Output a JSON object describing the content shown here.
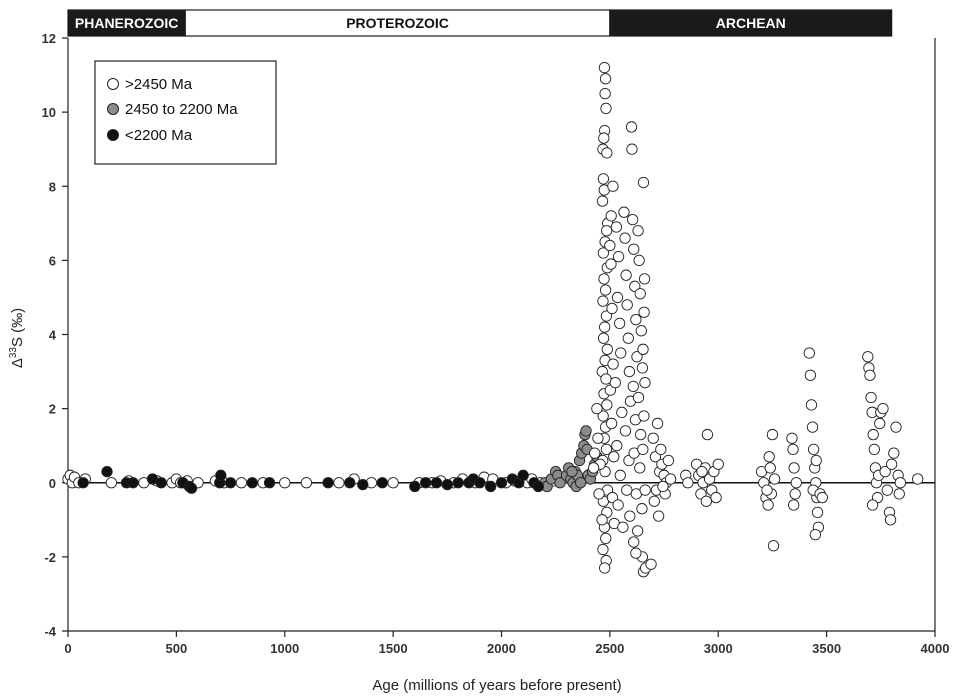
{
  "chart_data": {
    "type": "scatter",
    "xlabel": "Age (millions of years before present)",
    "ylabel_prefix": "Δ",
    "ylabel_sup": "33",
    "ylabel_suffix": "S (‰)",
    "xlim": [
      0,
      4000
    ],
    "ylim": [
      -4,
      12
    ],
    "x_ticks": [
      0,
      500,
      1000,
      1500,
      2000,
      2500,
      3000,
      3500,
      4000
    ],
    "y_ticks": [
      -4,
      -2,
      0,
      2,
      4,
      6,
      8,
      10,
      12
    ],
    "grid": false,
    "legend_position": "top-left",
    "eons": [
      {
        "name": "PHANEROZOIC",
        "from": 0,
        "to": 541,
        "fill": "#1a1a1a",
        "text": "#ffffff"
      },
      {
        "name": "PROTEROZOIC",
        "from": 541,
        "to": 2500,
        "fill": "#ffffff",
        "text": "#111111"
      },
      {
        "name": "ARCHEAN",
        "from": 2500,
        "to": 3800,
        "fill": "#1a1a1a",
        "text": "#ffffff"
      }
    ],
    "series": [
      {
        "name": ">2450 Ma",
        "fill": "#ffffff",
        "points": [
          [
            2475,
            11.2
          ],
          [
            2480,
            10.9
          ],
          [
            2478,
            10.5
          ],
          [
            2482,
            10.1
          ],
          [
            2476,
            9.5
          ],
          [
            2472,
            9.3
          ],
          [
            2468,
            9.0
          ],
          [
            2486,
            8.9
          ],
          [
            2470,
            8.2
          ],
          [
            2474,
            7.9
          ],
          [
            2466,
            7.6
          ],
          [
            2490,
            7.0
          ],
          [
            2485,
            6.8
          ],
          [
            2478,
            6.5
          ],
          [
            2470,
            6.2
          ],
          [
            2488,
            5.8
          ],
          [
            2473,
            5.5
          ],
          [
            2480,
            5.2
          ],
          [
            2468,
            4.9
          ],
          [
            2484,
            4.5
          ],
          [
            2476,
            4.2
          ],
          [
            2471,
            3.9
          ],
          [
            2488,
            3.6
          ],
          [
            2478,
            3.3
          ],
          [
            2465,
            3.0
          ],
          [
            2482,
            2.8
          ],
          [
            2473,
            2.4
          ],
          [
            2486,
            2.1
          ],
          [
            2469,
            1.8
          ],
          [
            2480,
            1.5
          ],
          [
            2474,
            1.2
          ],
          [
            2484,
            0.9
          ],
          [
            2467,
            0.6
          ],
          [
            2478,
            0.3
          ],
          [
            2470,
            -0.5
          ],
          [
            2486,
            -0.8
          ],
          [
            2475,
            -1.2
          ],
          [
            2481,
            -1.5
          ],
          [
            2468,
            -1.8
          ],
          [
            2483,
            -2.1
          ],
          [
            2476,
            -2.3
          ],
          [
            2464,
            -1.0
          ],
          [
            2489,
            -0.2
          ],
          [
            2440,
            2.0
          ],
          [
            2445,
            1.2
          ],
          [
            2430,
            0.8
          ],
          [
            2450,
            -0.3
          ],
          [
            2455,
            0.5
          ],
          [
            2425,
            0.4
          ],
          [
            2500,
            6.4
          ],
          [
            2505,
            5.9
          ],
          [
            2510,
            4.7
          ],
          [
            2515,
            3.2
          ],
          [
            2502,
            2.5
          ],
          [
            2508,
            1.6
          ],
          [
            2518,
            0.7
          ],
          [
            2512,
            -0.4
          ],
          [
            2520,
            -1.1
          ],
          [
            2506,
            7.2
          ],
          [
            2514,
            8.0
          ],
          [
            2530,
            6.9
          ],
          [
            2540,
            6.1
          ],
          [
            2535,
            5.0
          ],
          [
            2545,
            4.3
          ],
          [
            2550,
            3.5
          ],
          [
            2525,
            2.7
          ],
          [
            2555,
            1.9
          ],
          [
            2532,
            1.0
          ],
          [
            2548,
            0.2
          ],
          [
            2538,
            -0.6
          ],
          [
            2560,
            -1.2
          ],
          [
            2565,
            7.3
          ],
          [
            2570,
            6.6
          ],
          [
            2575,
            5.6
          ],
          [
            2580,
            4.8
          ],
          [
            2585,
            3.9
          ],
          [
            2590,
            3.0
          ],
          [
            2595,
            2.2
          ],
          [
            2572,
            1.4
          ],
          [
            2588,
            0.6
          ],
          [
            2578,
            -0.2
          ],
          [
            2592,
            -0.9
          ],
          [
            2600,
            9.6
          ],
          [
            2602,
            9.0
          ],
          [
            2605,
            7.1
          ],
          [
            2610,
            6.3
          ],
          [
            2615,
            5.3
          ],
          [
            2620,
            4.4
          ],
          [
            2625,
            3.4
          ],
          [
            2608,
            2.6
          ],
          [
            2618,
            1.7
          ],
          [
            2612,
            0.8
          ],
          [
            2622,
            -0.3
          ],
          [
            2630,
            6.8
          ],
          [
            2635,
            6.0
          ],
          [
            2640,
            5.1
          ],
          [
            2645,
            4.1
          ],
          [
            2650,
            3.1
          ],
          [
            2632,
            2.3
          ],
          [
            2642,
            1.3
          ],
          [
            2638,
            0.4
          ],
          [
            2648,
            -0.7
          ],
          [
            2628,
            -1.3
          ],
          [
            2655,
            8.1
          ],
          [
            2660,
            5.5
          ],
          [
            2658,
            4.6
          ],
          [
            2653,
            3.6
          ],
          [
            2662,
            2.7
          ],
          [
            2657,
            1.8
          ],
          [
            2652,
            0.9
          ],
          [
            2663,
            -0.2
          ],
          [
            2650,
            -2.0
          ],
          [
            2655,
            -2.4
          ],
          [
            2620,
            -1.9
          ],
          [
            2610,
            -1.6
          ],
          [
            2665,
            -2.3
          ],
          [
            2690,
            -2.2
          ],
          [
            2700,
            1.2
          ],
          [
            2710,
            0.7
          ],
          [
            2720,
            1.6
          ],
          [
            2730,
            0.3
          ],
          [
            2715,
            -0.2
          ],
          [
            2740,
            0.5
          ],
          [
            2705,
            -0.5
          ],
          [
            2725,
            -0.9
          ],
          [
            2750,
            0.2
          ],
          [
            2760,
            0.0
          ],
          [
            2770,
            0.6
          ],
          [
            2780,
            0.1
          ],
          [
            2755,
            -0.3
          ],
          [
            2735,
            0.9
          ],
          [
            2745,
            -0.1
          ],
          [
            2850,
            0.2
          ],
          [
            2860,
            0.0
          ],
          [
            2900,
            0.5
          ],
          [
            2910,
            0.2
          ],
          [
            2920,
            -0.3
          ],
          [
            2930,
            0.0
          ],
          [
            2940,
            0.4
          ],
          [
            2950,
            1.3
          ],
          [
            2960,
            0.1
          ],
          [
            2970,
            -0.2
          ],
          [
            2980,
            0.3
          ],
          [
            2990,
            -0.4
          ],
          [
            3000,
            0.5
          ],
          [
            2945,
            -0.5
          ],
          [
            2925,
            0.3
          ],
          [
            3200,
            0.3
          ],
          [
            3210,
            0.0
          ],
          [
            3220,
            -0.4
          ],
          [
            3230,
            -0.6
          ],
          [
            3240,
            0.4
          ],
          [
            3250,
            1.3
          ],
          [
            3255,
            -1.7
          ],
          [
            3260,
            0.1
          ],
          [
            3245,
            -0.3
          ],
          [
            3235,
            0.7
          ],
          [
            3225,
            -0.2
          ],
          [
            3340,
            1.2
          ],
          [
            3345,
            0.9
          ],
          [
            3350,
            0.4
          ],
          [
            3355,
            -0.3
          ],
          [
            3348,
            -0.6
          ],
          [
            3360,
            0.0
          ],
          [
            3420,
            3.5
          ],
          [
            3425,
            2.9
          ],
          [
            3430,
            2.1
          ],
          [
            3435,
            1.5
          ],
          [
            3440,
            0.9
          ],
          [
            3445,
            0.4
          ],
          [
            3450,
            0.0
          ],
          [
            3455,
            -0.4
          ],
          [
            3458,
            -0.8
          ],
          [
            3462,
            -1.2
          ],
          [
            3448,
            -1.4
          ],
          [
            3438,
            -0.2
          ],
          [
            3452,
            0.6
          ],
          [
            3470,
            -0.3
          ],
          [
            3480,
            -0.4
          ],
          [
            3690,
            3.4
          ],
          [
            3695,
            3.1
          ],
          [
            3700,
            2.9
          ],
          [
            3705,
            2.3
          ],
          [
            3710,
            1.9
          ],
          [
            3715,
            1.3
          ],
          [
            3720,
            0.9
          ],
          [
            3725,
            0.4
          ],
          [
            3730,
            0.0
          ],
          [
            3735,
            -0.4
          ],
          [
            3712,
            -0.6
          ],
          [
            3740,
            0.2
          ],
          [
            3745,
            1.6
          ],
          [
            3750,
            1.9
          ],
          [
            3760,
            2.0
          ],
          [
            3770,
            0.3
          ],
          [
            3780,
            -0.2
          ],
          [
            3790,
            -0.8
          ],
          [
            3795,
            -1.0
          ],
          [
            3800,
            0.5
          ],
          [
            3810,
            0.8
          ],
          [
            3820,
            1.5
          ],
          [
            3830,
            0.2
          ],
          [
            3840,
            0.0
          ],
          [
            3835,
            -0.3
          ],
          [
            3920,
            0.1
          ]
        ]
      },
      {
        "name": "2450 to 2200 Ma",
        "fill": "#8c8c8c",
        "points": [
          [
            2200,
            0.0
          ],
          [
            2210,
            -0.1
          ],
          [
            2230,
            0.1
          ],
          [
            2250,
            0.3
          ],
          [
            2260,
            0.2
          ],
          [
            2270,
            0.0
          ],
          [
            2300,
            0.2
          ],
          [
            2310,
            0.4
          ],
          [
            2320,
            0.1
          ],
          [
            2330,
            0.0
          ],
          [
            2340,
            0.3
          ],
          [
            2350,
            0.2
          ],
          [
            2360,
            0.6
          ],
          [
            2370,
            0.8
          ],
          [
            2380,
            1.0
          ],
          [
            2385,
            1.3
          ],
          [
            2390,
            1.4
          ],
          [
            2395,
            0.9
          ],
          [
            2400,
            0.2
          ],
          [
            2410,
            0.1
          ],
          [
            2420,
            0.3
          ],
          [
            2430,
            0.5
          ],
          [
            2440,
            0.7
          ],
          [
            2345,
            -0.1
          ],
          [
            2365,
            0.0
          ],
          [
            2325,
            0.3
          ]
        ]
      },
      {
        "name": "<2200 Ma",
        "fill": "#111111",
        "points": [
          [
            70,
            0.0
          ],
          [
            180,
            0.3
          ],
          [
            270,
            0.0
          ],
          [
            300,
            0.0
          ],
          [
            390,
            0.1
          ],
          [
            430,
            0.0
          ],
          [
            530,
            0.0
          ],
          [
            560,
            -0.1
          ],
          [
            570,
            -0.15
          ],
          [
            700,
            0.0
          ],
          [
            705,
            0.2
          ],
          [
            750,
            0.0
          ],
          [
            850,
            0.0
          ],
          [
            930,
            0.0
          ],
          [
            1200,
            0.0
          ],
          [
            1300,
            0.0
          ],
          [
            1360,
            -0.05
          ],
          [
            1450,
            0.0
          ],
          [
            1600,
            -0.1
          ],
          [
            1650,
            0.0
          ],
          [
            1700,
            0.0
          ],
          [
            1750,
            -0.05
          ],
          [
            1800,
            0.0
          ],
          [
            1850,
            0.0
          ],
          [
            1870,
            0.1
          ],
          [
            1900,
            0.0
          ],
          [
            1950,
            -0.1
          ],
          [
            2000,
            0.0
          ],
          [
            2050,
            0.1
          ],
          [
            2080,
            0.0
          ],
          [
            2100,
            0.2
          ],
          [
            2150,
            0.0
          ],
          [
            2170,
            -0.1
          ]
        ]
      }
    ],
    "background_open_points": [
      [
        0,
        0.1
      ],
      [
        10,
        0.2
      ],
      [
        20,
        0.0
      ],
      [
        30,
        0.15
      ],
      [
        50,
        0.0
      ],
      [
        80,
        0.1
      ],
      [
        200,
        0.0
      ],
      [
        280,
        0.05
      ],
      [
        350,
        0.0
      ],
      [
        410,
        0.05
      ],
      [
        480,
        0.0
      ],
      [
        500,
        0.1
      ],
      [
        520,
        0.0
      ],
      [
        550,
        0.05
      ],
      [
        600,
        0.0
      ],
      [
        680,
        0.05
      ],
      [
        720,
        0.0
      ],
      [
        800,
        0.0
      ],
      [
        900,
        0.0
      ],
      [
        1000,
        0.0
      ],
      [
        1100,
        0.0
      ],
      [
        1250,
        0.0
      ],
      [
        1320,
        0.1
      ],
      [
        1400,
        0.0
      ],
      [
        1500,
        0.0
      ],
      [
        1620,
        0.0
      ],
      [
        1680,
        0.0
      ],
      [
        1720,
        0.05
      ],
      [
        1780,
        0.0
      ],
      [
        1820,
        0.1
      ],
      [
        1880,
        0.0
      ],
      [
        1920,
        0.15
      ],
      [
        1960,
        0.1
      ],
      [
        2020,
        0.0
      ],
      [
        2060,
        0.05
      ],
      [
        2120,
        0.0
      ],
      [
        2140,
        0.1
      ],
      [
        2180,
        0.0
      ],
      [
        2240,
        0.05
      ],
      [
        2280,
        0.1
      ]
    ]
  }
}
